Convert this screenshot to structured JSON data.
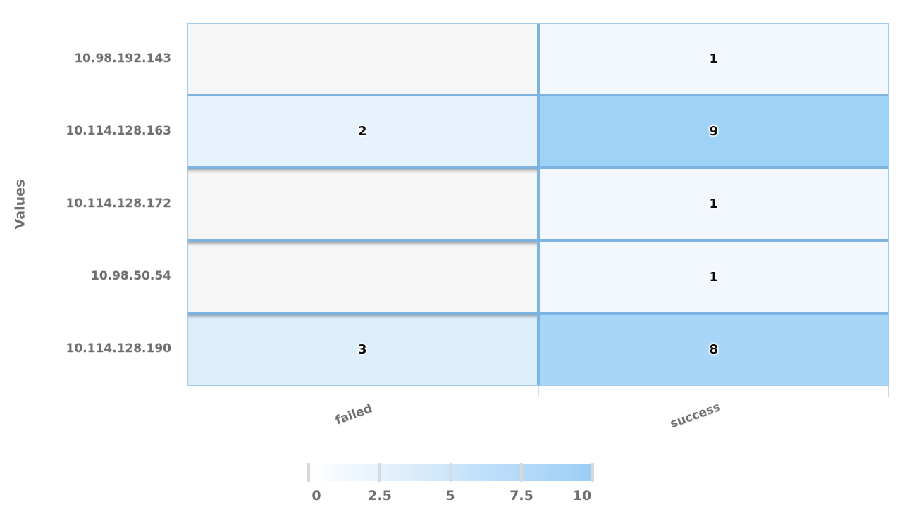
{
  "chart_data": {
    "type": "heatmap",
    "title": "",
    "xlabel": "",
    "ylabel": "Values",
    "rows": [
      "10.98.192.143",
      "10.114.128.163",
      "10.114.128.172",
      "10.98.50.54",
      "10.114.128.190"
    ],
    "columns": [
      "failed",
      "success"
    ],
    "values": [
      [
        null,
        1
      ],
      [
        2,
        9
      ],
      [
        null,
        1
      ],
      [
        null,
        1
      ],
      [
        3,
        8
      ]
    ],
    "value_range": [
      0,
      10
    ],
    "legend": {
      "position": "bottom",
      "tick_labels": [
        "0",
        "2.5",
        "5",
        "7.5",
        "10"
      ],
      "gradient_start": "#ffffff",
      "gradient_end": "#9bcdf6"
    },
    "layout": {
      "grid_on": true,
      "x_tick_rotation": -20
    },
    "colors": {
      "empty_cell": "#f6f6f6",
      "value_map": {
        "1": "#f3f8fe",
        "2": "#e7f2fd",
        "3": "#ddeefb",
        "8": "#a8d6f8",
        "9": "#9ed2f7"
      },
      "grid_line": "#7cb3e1",
      "outer_border": "#a3cbee",
      "label_text": "#6f6f6f",
      "legend_tick": "#d9d9d9"
    }
  }
}
